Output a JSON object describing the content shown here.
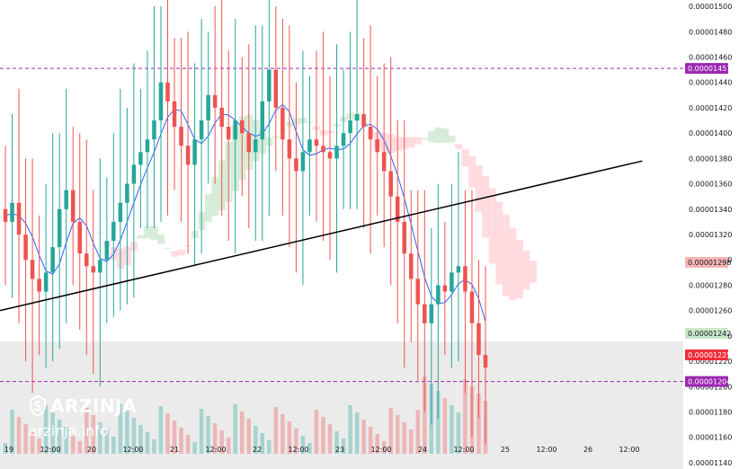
{
  "brand": {
    "name": "ARZINJA",
    "site": "arzinja.info",
    "logo_icon": "s-logo-icon"
  },
  "colors": {
    "up": "#26a69a",
    "down": "#ef5350",
    "ichimoku_cloud_up": "#c8e6c9",
    "ichimoku_cloud_down": "#ffcdd2",
    "base_line": "#2962ff",
    "trend_line": "#000000",
    "level_line": "#9c27b0"
  },
  "chart_data": {
    "type": "candlestick",
    "symbol_scale": "price",
    "ylim": [
      1.135e-05,
      1.505e-05
    ],
    "y_ticks": [
      "0.00001500",
      "0.00001480",
      "0.00001460",
      "0.00001440",
      "0.00001420",
      "0.00001400",
      "0.00001380",
      "0.00001360",
      "0.00001340",
      "0.00001320",
      "0.00001300",
      "0.00001280",
      "0.00001260",
      "0.00001240",
      "0.00001220",
      "0.00001200",
      "0.00001180",
      "0.00001160",
      "0.00001140"
    ],
    "x_ticks": [
      "19",
      "12:00",
      "20",
      "12:00",
      "21",
      "12:00",
      "22",
      "12:00",
      "23",
      "12:00",
      "24",
      "12:00",
      "25",
      "12:00",
      "26",
      "12:00"
    ],
    "price_tags": [
      {
        "label": "0.00001451",
        "value": 1.451e-05,
        "color": "#9c27b0"
      },
      {
        "label": "0.00001298",
        "value": 1.298e-05,
        "color": "#f8b4b4"
      },
      {
        "label": "0.00001242",
        "value": 1.242e-05,
        "color": "#c8e6c9"
      },
      {
        "label": "0.00001225",
        "value": 1.225e-05,
        "color": "#ef2e3a"
      },
      {
        "label": "0.00001204",
        "value": 1.204e-05,
        "color": "#9c27b0"
      }
    ],
    "horizontal_levels": [
      1.451e-05,
      1.204e-05
    ],
    "trend_line": {
      "from": [
        0,
        1.26e-05
      ],
      "to": [
        0.94,
        1.378e-05
      ]
    },
    "close_series": [
      1.33e-05,
      1.345e-05,
      1.32e-05,
      1.3e-05,
      1.285e-05,
      1.275e-05,
      1.29e-05,
      1.31e-05,
      1.34e-05,
      1.355e-05,
      1.33e-05,
      1.305e-05,
      1.295e-05,
      1.29e-05,
      1.3e-05,
      1.315e-05,
      1.33e-05,
      1.345e-05,
      1.36e-05,
      1.375e-05,
      1.385e-05,
      1.395e-05,
      1.41e-05,
      1.44e-05,
      1.425e-05,
      1.405e-05,
      1.39e-05,
      1.375e-05,
      1.395e-05,
      1.41e-05,
      1.43e-05,
      1.42e-05,
      1.405e-05,
      1.395e-05,
      1.41e-05,
      1.4e-05,
      1.385e-05,
      1.395e-05,
      1.425e-05,
      1.45e-05,
      1.42e-05,
      1.395e-05,
      1.38e-05,
      1.37e-05,
      1.385e-05,
      1.395e-05,
      1.39e-05,
      1.385e-05,
      1.38e-05,
      1.39e-05,
      1.4e-05,
      1.41e-05,
      1.415e-05,
      1.405e-05,
      1.395e-05,
      1.385e-05,
      1.37e-05,
      1.35e-05,
      1.33e-05,
      1.305e-05,
      1.285e-05,
      1.265e-05,
      1.25e-05,
      1.265e-05,
      1.28e-05,
      1.275e-05,
      1.29e-05,
      1.295e-05,
      1.275e-05,
      1.25e-05,
      1.225e-05,
      1.215e-05
    ]
  }
}
